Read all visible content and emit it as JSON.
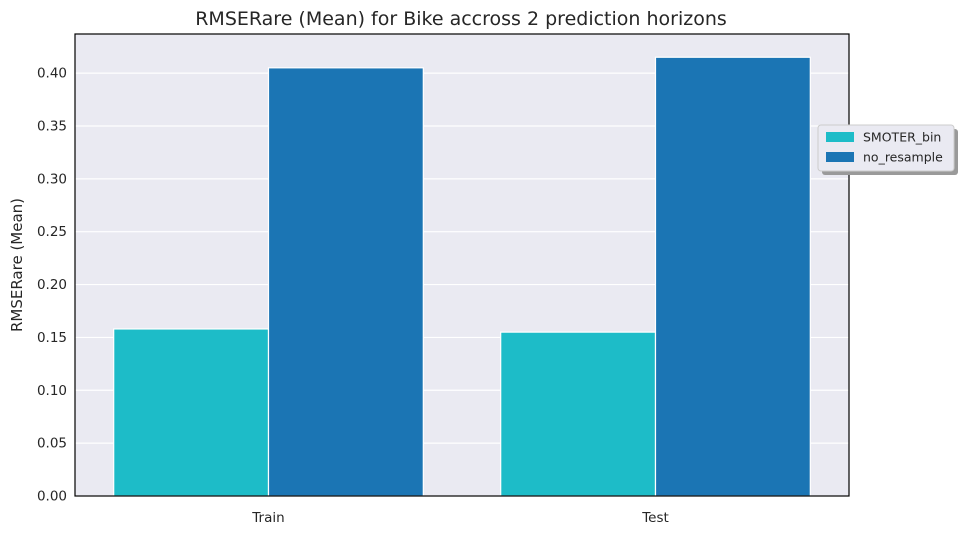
{
  "chart_data": {
    "type": "bar",
    "title": "RMSERare (Mean) for Bike accross 2 prediction horizons",
    "xlabel": "",
    "ylabel": "RMSERare (Mean)",
    "categories": [
      "Train",
      "Test"
    ],
    "series": [
      {
        "name": "SMOTER_bin",
        "values": [
          0.158,
          0.155
        ],
        "color": "#1dbcc8"
      },
      {
        "name": "no_resample",
        "values": [
          0.405,
          0.415
        ],
        "color": "#1b75b4"
      }
    ],
    "ylim": [
      0,
      0.437
    ],
    "yticks": [
      "0.00",
      "0.05",
      "0.10",
      "0.15",
      "0.20",
      "0.25",
      "0.30",
      "0.35",
      "0.40"
    ],
    "grid": true,
    "legend_position": "right",
    "background": "#eaeaf2"
  }
}
